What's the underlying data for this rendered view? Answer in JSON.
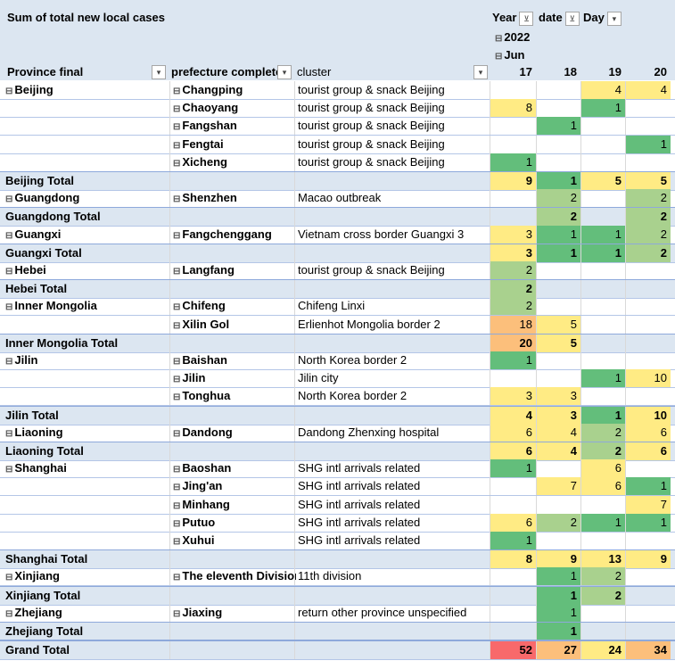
{
  "header": {
    "title": "Sum of total new local cases",
    "year_label": "Year",
    "date_label": "date",
    "day_label": "Day",
    "year_value": "2022",
    "month_value": "Jun",
    "col_province": "Province final",
    "col_prefecture": "prefecture complete",
    "col_cluster": "cluster",
    "days": [
      "17",
      "18",
      "19",
      "20"
    ]
  },
  "icons": {
    "expand": "⊟",
    "filter": "▾",
    "filter_active": "⊻"
  },
  "colors": {
    "green": "#63be7b",
    "lightgreen": "#a9d18e",
    "yellow": "#ffeb84",
    "orange": "#fcbf7b",
    "red": "#f8696b",
    "header_bg": "#dce6f1"
  },
  "rows": [
    {
      "type": "data",
      "province": "Beijing",
      "prefecture": "Changping",
      "cluster": "tourist group & snack Beijing",
      "v": [
        "",
        "",
        "4",
        "4"
      ],
      "c": [
        "",
        "",
        "yellow",
        "yellow"
      ]
    },
    {
      "type": "data",
      "province": "",
      "prefecture": "Chaoyang",
      "cluster": "tourist group & snack Beijing",
      "v": [
        "8",
        "",
        "1",
        ""
      ],
      "c": [
        "yellow",
        "",
        "green",
        ""
      ]
    },
    {
      "type": "data",
      "province": "",
      "prefecture": "Fangshan",
      "cluster": "tourist group & snack Beijing",
      "v": [
        "",
        "1",
        "",
        ""
      ],
      "c": [
        "",
        "green",
        "",
        ""
      ]
    },
    {
      "type": "data",
      "province": "",
      "prefecture": "Fengtai",
      "cluster": "tourist group & snack Beijing",
      "v": [
        "",
        "",
        "",
        "1"
      ],
      "c": [
        "",
        "",
        "",
        "green"
      ]
    },
    {
      "type": "data",
      "province": "",
      "prefecture": "Xicheng",
      "cluster": "tourist group & snack Beijing",
      "v": [
        "1",
        "",
        "",
        ""
      ],
      "c": [
        "green",
        "",
        "",
        ""
      ]
    },
    {
      "type": "total",
      "province": "Beijing Total",
      "v": [
        "9",
        "1",
        "5",
        "5"
      ],
      "c": [
        "yellow",
        "green",
        "yellow",
        "yellow"
      ]
    },
    {
      "type": "data",
      "province": "Guangdong",
      "prefecture": "Shenzhen",
      "cluster": "Macao outbreak",
      "v": [
        "",
        "2",
        "",
        "2"
      ],
      "c": [
        "",
        "lightgreen",
        "",
        "lightgreen"
      ]
    },
    {
      "type": "total",
      "province": "Guangdong Total",
      "v": [
        "",
        "2",
        "",
        "2"
      ],
      "c": [
        "",
        "lightgreen",
        "",
        "lightgreen"
      ]
    },
    {
      "type": "data",
      "province": "Guangxi",
      "prefecture": "Fangchenggang",
      "cluster": "Vietnam cross border Guangxi 3",
      "v": [
        "3",
        "1",
        "1",
        "2"
      ],
      "c": [
        "yellow",
        "green",
        "green",
        "lightgreen"
      ]
    },
    {
      "type": "total",
      "province": "Guangxi Total",
      "v": [
        "3",
        "1",
        "1",
        "2"
      ],
      "c": [
        "yellow",
        "green",
        "green",
        "lightgreen"
      ]
    },
    {
      "type": "data",
      "province": "Hebei",
      "prefecture": "Langfang",
      "cluster": "tourist group & snack Beijing",
      "v": [
        "2",
        "",
        "",
        ""
      ],
      "c": [
        "lightgreen",
        "",
        "",
        ""
      ]
    },
    {
      "type": "total",
      "province": "Hebei Total",
      "v": [
        "2",
        "",
        "",
        ""
      ],
      "c": [
        "lightgreen",
        "",
        "",
        ""
      ]
    },
    {
      "type": "data",
      "province": "Inner Mongolia",
      "prefecture": "Chifeng",
      "cluster": "Chifeng Linxi",
      "v": [
        "2",
        "",
        "",
        ""
      ],
      "c": [
        "lightgreen",
        "",
        "",
        ""
      ]
    },
    {
      "type": "data",
      "province": "",
      "prefecture": "Xilin Gol",
      "cluster": "Erlienhot Mongolia border 2",
      "v": [
        "18",
        "5",
        "",
        ""
      ],
      "c": [
        "orange",
        "yellow",
        "",
        ""
      ]
    },
    {
      "type": "total",
      "province": "Inner Mongolia Total",
      "v": [
        "20",
        "5",
        "",
        ""
      ],
      "c": [
        "orange",
        "yellow",
        "",
        ""
      ]
    },
    {
      "type": "data",
      "province": "Jilin",
      "prefecture": "Baishan",
      "cluster": "North Korea border 2",
      "v": [
        "1",
        "",
        "",
        ""
      ],
      "c": [
        "green",
        "",
        "",
        ""
      ]
    },
    {
      "type": "data",
      "province": "",
      "prefecture": "Jilin",
      "cluster": "Jilin city",
      "v": [
        "",
        "",
        "1",
        "10"
      ],
      "c": [
        "",
        "",
        "green",
        "yellow"
      ]
    },
    {
      "type": "data",
      "province": "",
      "prefecture": "Tonghua",
      "cluster": "North Korea border 2",
      "v": [
        "3",
        "3",
        "",
        ""
      ],
      "c": [
        "yellow",
        "yellow",
        "",
        ""
      ]
    },
    {
      "type": "total",
      "province": "Jilin Total",
      "v": [
        "4",
        "3",
        "1",
        "10"
      ],
      "c": [
        "yellow",
        "yellow",
        "green",
        "yellow"
      ]
    },
    {
      "type": "data",
      "province": "Liaoning",
      "prefecture": "Dandong",
      "cluster": "Dandong Zhenxing hospital",
      "v": [
        "6",
        "4",
        "2",
        "6"
      ],
      "c": [
        "yellow",
        "yellow",
        "lightgreen",
        "yellow"
      ]
    },
    {
      "type": "total",
      "province": "Liaoning Total",
      "v": [
        "6",
        "4",
        "2",
        "6"
      ],
      "c": [
        "yellow",
        "yellow",
        "lightgreen",
        "yellow"
      ]
    },
    {
      "type": "data",
      "province": "Shanghai",
      "prefecture": "Baoshan",
      "cluster": "SHG intl arrivals related",
      "v": [
        "1",
        "",
        "6",
        ""
      ],
      "c": [
        "green",
        "",
        "yellow",
        ""
      ]
    },
    {
      "type": "data",
      "province": "",
      "prefecture": "Jing'an",
      "cluster": "SHG intl arrivals related",
      "v": [
        "",
        "7",
        "6",
        "1"
      ],
      "c": [
        "",
        "yellow",
        "yellow",
        "green"
      ]
    },
    {
      "type": "data",
      "province": "",
      "prefecture": "Minhang",
      "cluster": "SHG intl arrivals related",
      "v": [
        "",
        "",
        "",
        "7"
      ],
      "c": [
        "",
        "",
        "",
        "yellow"
      ]
    },
    {
      "type": "data",
      "province": "",
      "prefecture": "Putuo",
      "cluster": "SHG intl arrivals related",
      "v": [
        "6",
        "2",
        "1",
        "1"
      ],
      "c": [
        "yellow",
        "lightgreen",
        "green",
        "green"
      ]
    },
    {
      "type": "data",
      "province": "",
      "prefecture": "Xuhui",
      "cluster": "SHG intl arrivals related",
      "v": [
        "1",
        "",
        "",
        ""
      ],
      "c": [
        "green",
        "",
        "",
        ""
      ]
    },
    {
      "type": "total",
      "province": "Shanghai Total",
      "v": [
        "8",
        "9",
        "13",
        "9"
      ],
      "c": [
        "yellow",
        "yellow",
        "yellow",
        "yellow"
      ]
    },
    {
      "type": "data",
      "province": "Xinjiang",
      "prefecture": "The eleventh Division",
      "cluster": "11th division",
      "v": [
        "",
        "1",
        "2",
        ""
      ],
      "c": [
        "",
        "green",
        "lightgreen",
        ""
      ]
    },
    {
      "type": "total",
      "province": "Xinjiang Total",
      "v": [
        "",
        "1",
        "2",
        ""
      ],
      "c": [
        "",
        "green",
        "lightgreen",
        ""
      ]
    },
    {
      "type": "data",
      "province": "Zhejiang",
      "prefecture": "Jiaxing",
      "cluster": "return other province unspecified",
      "v": [
        "",
        "1",
        "",
        ""
      ],
      "c": [
        "",
        "green",
        "",
        ""
      ]
    },
    {
      "type": "total",
      "province": "Zhejiang Total",
      "v": [
        "",
        "1",
        "",
        ""
      ],
      "c": [
        "",
        "green",
        "",
        ""
      ]
    },
    {
      "type": "grand",
      "province": "Grand Total",
      "v": [
        "52",
        "27",
        "24",
        "34"
      ],
      "c": [
        "red",
        "orange",
        "yellow",
        "orange"
      ]
    }
  ]
}
